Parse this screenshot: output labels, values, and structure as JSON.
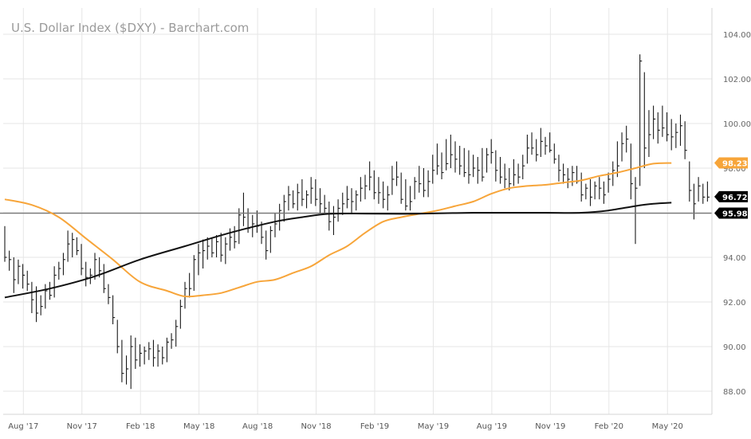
{
  "chart_data": {
    "type": "ohlc",
    "title": "U.S. Dollar Index ($DXY) - Barchart.com",
    "xlabel": "",
    "ylabel": "",
    "ylim": [
      87.0,
      104.8
    ],
    "y_ticks": [
      "88.00",
      "90.00",
      "92.00",
      "94.00",
      "96.00",
      "98.00",
      "100.00",
      "102.00",
      "104.00"
    ],
    "y_tick_values": [
      88,
      90,
      92,
      94,
      96,
      98,
      100,
      102,
      104
    ],
    "x_ticks": [
      "Aug '17",
      "Nov '17",
      "Feb '18",
      "May '18",
      "Aug '18",
      "Nov '18",
      "Feb '19",
      "May '19",
      "Aug '19",
      "Nov '19",
      "Feb '20",
      "May '20"
    ],
    "x_tick_index": [
      2,
      15,
      28,
      41,
      54,
      67,
      80,
      93,
      106,
      119,
      132,
      145
    ],
    "bars": [
      {
        "h": 95.4,
        "l": 93.8,
        "c": 94.0
      },
      {
        "h": 94.3,
        "l": 93.4,
        "c": 93.9
      },
      {
        "h": 94.0,
        "l": 92.4,
        "c": 93.0
      },
      {
        "h": 93.9,
        "l": 92.8,
        "c": 93.6
      },
      {
        "h": 93.7,
        "l": 92.6,
        "c": 93.2
      },
      {
        "h": 93.4,
        "l": 92.5,
        "c": 92.8
      },
      {
        "h": 92.9,
        "l": 91.5,
        "c": 92.1
      },
      {
        "h": 92.7,
        "l": 91.1,
        "c": 91.5
      },
      {
        "h": 92.3,
        "l": 91.4,
        "c": 91.8
      },
      {
        "h": 92.8,
        "l": 91.7,
        "c": 92.5
      },
      {
        "h": 92.9,
        "l": 92.1,
        "c": 92.3
      },
      {
        "h": 93.6,
        "l": 92.2,
        "c": 93.2
      },
      {
        "h": 93.8,
        "l": 93.0,
        "c": 93.5
      },
      {
        "h": 94.2,
        "l": 93.2,
        "c": 93.9
      },
      {
        "h": 95.2,
        "l": 93.8,
        "c": 94.6
      },
      {
        "h": 95.1,
        "l": 94.0,
        "c": 94.8
      },
      {
        "h": 94.9,
        "l": 94.1,
        "c": 94.3
      },
      {
        "h": 94.6,
        "l": 93.2,
        "c": 93.5
      },
      {
        "h": 93.8,
        "l": 92.7,
        "c": 93.1
      },
      {
        "h": 93.5,
        "l": 92.8,
        "c": 93.2
      },
      {
        "h": 94.2,
        "l": 93.0,
        "c": 93.9
      },
      {
        "h": 94.0,
        "l": 93.1,
        "c": 93.4
      },
      {
        "h": 93.7,
        "l": 92.4,
        "c": 92.6
      },
      {
        "h": 92.8,
        "l": 91.9,
        "c": 92.2
      },
      {
        "h": 92.3,
        "l": 91.0,
        "c": 91.3
      },
      {
        "h": 91.2,
        "l": 89.7,
        "c": 90.0
      },
      {
        "h": 90.3,
        "l": 88.4,
        "c": 88.8
      },
      {
        "h": 89.6,
        "l": 88.3,
        "c": 89.0
      },
      {
        "h": 90.5,
        "l": 88.1,
        "c": 90.0
      },
      {
        "h": 90.4,
        "l": 89.0,
        "c": 89.4
      },
      {
        "h": 90.1,
        "l": 89.1,
        "c": 89.7
      },
      {
        "h": 90.0,
        "l": 89.2,
        "c": 89.8
      },
      {
        "h": 90.2,
        "l": 89.4,
        "c": 89.9
      },
      {
        "h": 90.3,
        "l": 89.1,
        "c": 89.5
      },
      {
        "h": 90.1,
        "l": 89.1,
        "c": 89.8
      },
      {
        "h": 90.0,
        "l": 89.2,
        "c": 89.5
      },
      {
        "h": 90.4,
        "l": 89.3,
        "c": 90.2
      },
      {
        "h": 90.6,
        "l": 89.9,
        "c": 90.3
      },
      {
        "h": 91.2,
        "l": 90.0,
        "c": 90.9
      },
      {
        "h": 92.1,
        "l": 90.8,
        "c": 91.8
      },
      {
        "h": 92.9,
        "l": 91.7,
        "c": 92.6
      },
      {
        "h": 93.3,
        "l": 92.2,
        "c": 92.6
      },
      {
        "h": 94.1,
        "l": 92.5,
        "c": 93.9
      },
      {
        "h": 94.6,
        "l": 93.2,
        "c": 94.2
      },
      {
        "h": 94.8,
        "l": 93.5,
        "c": 94.3
      },
      {
        "h": 94.9,
        "l": 93.9,
        "c": 94.5
      },
      {
        "h": 94.9,
        "l": 94.0,
        "c": 94.2
      },
      {
        "h": 95.0,
        "l": 94.0,
        "c": 94.7
      },
      {
        "h": 95.1,
        "l": 93.8,
        "c": 94.1
      },
      {
        "h": 94.9,
        "l": 93.7,
        "c": 94.6
      },
      {
        "h": 95.3,
        "l": 94.3,
        "c": 94.9
      },
      {
        "h": 95.4,
        "l": 94.4,
        "c": 94.7
      },
      {
        "h": 96.2,
        "l": 94.6,
        "c": 95.9
      },
      {
        "h": 96.9,
        "l": 95.4,
        "c": 95.8
      },
      {
        "h": 96.2,
        "l": 95.1,
        "c": 95.3
      },
      {
        "h": 95.9,
        "l": 94.9,
        "c": 95.5
      },
      {
        "h": 96.1,
        "l": 95.1,
        "c": 95.4
      },
      {
        "h": 95.6,
        "l": 94.6,
        "c": 94.9
      },
      {
        "h": 95.2,
        "l": 93.9,
        "c": 94.3
      },
      {
        "h": 95.4,
        "l": 94.2,
        "c": 95.2
      },
      {
        "h": 96.0,
        "l": 94.9,
        "c": 95.5
      },
      {
        "h": 96.4,
        "l": 95.2,
        "c": 96.1
      },
      {
        "h": 96.8,
        "l": 95.6,
        "c": 96.5
      },
      {
        "h": 97.2,
        "l": 96.1,
        "c": 96.8
      },
      {
        "h": 97.0,
        "l": 96.2,
        "c": 96.4
      },
      {
        "h": 97.3,
        "l": 96.1,
        "c": 96.9
      },
      {
        "h": 97.5,
        "l": 96.3,
        "c": 96.6
      },
      {
        "h": 97.0,
        "l": 96.2,
        "c": 96.8
      },
      {
        "h": 97.6,
        "l": 96.4,
        "c": 97.1
      },
      {
        "h": 97.5,
        "l": 96.3,
        "c": 96.6
      },
      {
        "h": 97.1,
        "l": 96.0,
        "c": 96.4
      },
      {
        "h": 96.8,
        "l": 96.0,
        "c": 96.2
      },
      {
        "h": 96.5,
        "l": 95.2,
        "c": 95.6
      },
      {
        "h": 96.3,
        "l": 95.0,
        "c": 95.8
      },
      {
        "h": 96.6,
        "l": 95.6,
        "c": 96.2
      },
      {
        "h": 96.9,
        "l": 95.9,
        "c": 96.4
      },
      {
        "h": 97.2,
        "l": 96.2,
        "c": 96.6
      },
      {
        "h": 97.1,
        "l": 96.0,
        "c": 96.5
      },
      {
        "h": 97.0,
        "l": 96.1,
        "c": 96.8
      },
      {
        "h": 97.6,
        "l": 96.5,
        "c": 97.1
      },
      {
        "h": 97.7,
        "l": 96.6,
        "c": 97.2
      },
      {
        "h": 98.3,
        "l": 97.0,
        "c": 97.6
      },
      {
        "h": 97.9,
        "l": 96.6,
        "c": 96.9
      },
      {
        "h": 97.6,
        "l": 96.4,
        "c": 96.9
      },
      {
        "h": 97.4,
        "l": 96.2,
        "c": 96.6
      },
      {
        "h": 97.2,
        "l": 96.1,
        "c": 96.8
      },
      {
        "h": 98.1,
        "l": 96.8,
        "c": 97.5
      },
      {
        "h": 98.3,
        "l": 97.2,
        "c": 97.6
      },
      {
        "h": 97.8,
        "l": 96.4,
        "c": 96.6
      },
      {
        "h": 97.5,
        "l": 96.1,
        "c": 96.3
      },
      {
        "h": 97.2,
        "l": 96.1,
        "c": 96.5
      },
      {
        "h": 97.6,
        "l": 96.6,
        "c": 97.4
      },
      {
        "h": 98.1,
        "l": 96.9,
        "c": 97.3
      },
      {
        "h": 98.0,
        "l": 96.7,
        "c": 97.0
      },
      {
        "h": 97.9,
        "l": 96.7,
        "c": 97.4
      },
      {
        "h": 98.6,
        "l": 97.3,
        "c": 97.9
      },
      {
        "h": 99.1,
        "l": 97.7,
        "c": 98.1
      },
      {
        "h": 98.7,
        "l": 97.5,
        "c": 97.8
      },
      {
        "h": 99.3,
        "l": 97.9,
        "c": 98.2
      },
      {
        "h": 99.5,
        "l": 98.0,
        "c": 98.6
      },
      {
        "h": 99.2,
        "l": 97.8,
        "c": 98.4
      },
      {
        "h": 99.0,
        "l": 97.7,
        "c": 98.1
      },
      {
        "h": 98.9,
        "l": 97.6,
        "c": 97.8
      },
      {
        "h": 98.8,
        "l": 97.3,
        "c": 97.7
      },
      {
        "h": 98.6,
        "l": 97.6,
        "c": 98.0
      },
      {
        "h": 98.5,
        "l": 97.3,
        "c": 97.9
      },
      {
        "h": 98.9,
        "l": 97.4,
        "c": 97.6
      },
      {
        "h": 98.9,
        "l": 97.8,
        "c": 98.6
      },
      {
        "h": 99.3,
        "l": 98.2,
        "c": 98.7
      },
      {
        "h": 98.8,
        "l": 97.4,
        "c": 97.9
      },
      {
        "h": 98.5,
        "l": 97.3,
        "c": 97.6
      },
      {
        "h": 98.2,
        "l": 97.1,
        "c": 97.5
      },
      {
        "h": 98.0,
        "l": 97.0,
        "c": 97.3
      },
      {
        "h": 98.4,
        "l": 97.2,
        "c": 97.7
      },
      {
        "h": 98.2,
        "l": 97.3,
        "c": 97.6
      },
      {
        "h": 98.6,
        "l": 97.5,
        "c": 98.1
      },
      {
        "h": 99.5,
        "l": 98.2,
        "c": 98.9
      },
      {
        "h": 99.6,
        "l": 98.6,
        "c": 98.9
      },
      {
        "h": 99.3,
        "l": 98.3,
        "c": 98.6
      },
      {
        "h": 99.8,
        "l": 98.5,
        "c": 99.2
      },
      {
        "h": 99.4,
        "l": 98.6,
        "c": 99.0
      },
      {
        "h": 99.6,
        "l": 98.7,
        "c": 98.8
      },
      {
        "h": 99.1,
        "l": 98.2,
        "c": 98.4
      },
      {
        "h": 98.6,
        "l": 97.4,
        "c": 97.9
      },
      {
        "h": 98.2,
        "l": 97.3,
        "c": 97.7
      },
      {
        "h": 98.0,
        "l": 97.1,
        "c": 97.5
      },
      {
        "h": 98.1,
        "l": 97.2,
        "c": 97.8
      },
      {
        "h": 98.1,
        "l": 97.3,
        "c": 97.4
      },
      {
        "h": 97.8,
        "l": 96.5,
        "c": 96.8
      },
      {
        "h": 97.3,
        "l": 96.6,
        "c": 97.1
      },
      {
        "h": 97.5,
        "l": 96.3,
        "c": 96.7
      },
      {
        "h": 97.4,
        "l": 96.6,
        "c": 97.2
      },
      {
        "h": 97.6,
        "l": 96.6,
        "c": 97.1
      },
      {
        "h": 97.4,
        "l": 96.4,
        "c": 96.8
      },
      {
        "h": 97.8,
        "l": 96.9,
        "c": 97.5
      },
      {
        "h": 98.3,
        "l": 97.2,
        "c": 97.9
      },
      {
        "h": 99.2,
        "l": 97.6,
        "c": 98.1
      },
      {
        "h": 99.6,
        "l": 98.3,
        "c": 99.1
      },
      {
        "h": 99.9,
        "l": 98.7,
        "c": 99.3
      },
      {
        "h": 99.1,
        "l": 96.6,
        "c": 97.3
      },
      {
        "h": 97.6,
        "l": 94.6,
        "c": 97.1
      },
      {
        "h": 103.1,
        "l": 97.2,
        "c": 102.8
      },
      {
        "h": 102.3,
        "l": 98.0,
        "c": 98.9
      },
      {
        "h": 100.6,
        "l": 98.5,
        "c": 99.5
      },
      {
        "h": 100.8,
        "l": 99.3,
        "c": 100.2
      },
      {
        "h": 100.5,
        "l": 99.1,
        "c": 99.7
      },
      {
        "h": 100.8,
        "l": 99.4,
        "c": 99.8
      },
      {
        "h": 100.5,
        "l": 99.2,
        "c": 99.5
      },
      {
        "h": 100.2,
        "l": 98.8,
        "c": 99.4
      },
      {
        "h": 100.0,
        "l": 98.9,
        "c": 99.6
      },
      {
        "h": 100.4,
        "l": 99.0,
        "c": 99.9
      },
      {
        "h": 100.1,
        "l": 98.4,
        "c": 98.8
      },
      {
        "h": 98.3,
        "l": 96.5,
        "c": 97.0
      },
      {
        "h": 97.3,
        "l": 95.7,
        "c": 96.4
      },
      {
        "h": 97.6,
        "l": 96.5,
        "c": 97.2
      },
      {
        "h": 97.3,
        "l": 96.4,
        "c": 96.7
      },
      {
        "h": 97.4,
        "l": 96.5,
        "c": 96.7
      }
    ],
    "ma50": {
      "color": "#f7a53a",
      "anchors": [
        [
          0,
          96.6
        ],
        [
          6,
          96.35
        ],
        [
          12,
          95.8
        ],
        [
          18,
          94.85
        ],
        [
          24,
          93.9
        ],
        [
          30,
          92.9
        ],
        [
          36,
          92.5
        ],
        [
          40,
          92.25
        ],
        [
          44,
          92.3
        ],
        [
          48,
          92.4
        ],
        [
          52,
          92.65
        ],
        [
          56,
          92.9
        ],
        [
          60,
          93.0
        ],
        [
          64,
          93.3
        ],
        [
          68,
          93.6
        ],
        [
          72,
          94.1
        ],
        [
          76,
          94.5
        ],
        [
          80,
          95.1
        ],
        [
          84,
          95.6
        ],
        [
          88,
          95.8
        ],
        [
          92,
          95.95
        ],
        [
          96,
          96.1
        ],
        [
          100,
          96.3
        ],
        [
          104,
          96.5
        ],
        [
          108,
          96.85
        ],
        [
          112,
          97.1
        ],
        [
          116,
          97.2
        ],
        [
          120,
          97.25
        ],
        [
          124,
          97.35
        ],
        [
          128,
          97.45
        ],
        [
          132,
          97.65
        ],
        [
          136,
          97.8
        ],
        [
          140,
          98.0
        ],
        [
          144,
          98.2
        ],
        [
          148,
          98.23
        ]
      ]
    },
    "ma200": {
      "color": "#111111",
      "anchors": [
        [
          0,
          92.2
        ],
        [
          10,
          92.6
        ],
        [
          20,
          93.15
        ],
        [
          30,
          93.9
        ],
        [
          40,
          94.5
        ],
        [
          50,
          95.1
        ],
        [
          60,
          95.6
        ],
        [
          66,
          95.8
        ],
        [
          72,
          95.95
        ],
        [
          80,
          95.96
        ],
        [
          88,
          95.95
        ],
        [
          96,
          95.97
        ],
        [
          104,
          96.0
        ],
        [
          112,
          96.0
        ],
        [
          120,
          96.0
        ],
        [
          128,
          96.0
        ],
        [
          134,
          96.1
        ],
        [
          140,
          96.3
        ],
        [
          144,
          96.4
        ],
        [
          148,
          96.45
        ]
      ]
    },
    "reference_line": 95.98,
    "price_tags": [
      {
        "label": "98.23",
        "value": 98.23,
        "color": "#f7a53a"
      },
      {
        "label": "96.72",
        "value": 96.72,
        "color": "#000000"
      },
      {
        "label": "95.98",
        "value": 95.98,
        "color": "#000000"
      }
    ]
  }
}
